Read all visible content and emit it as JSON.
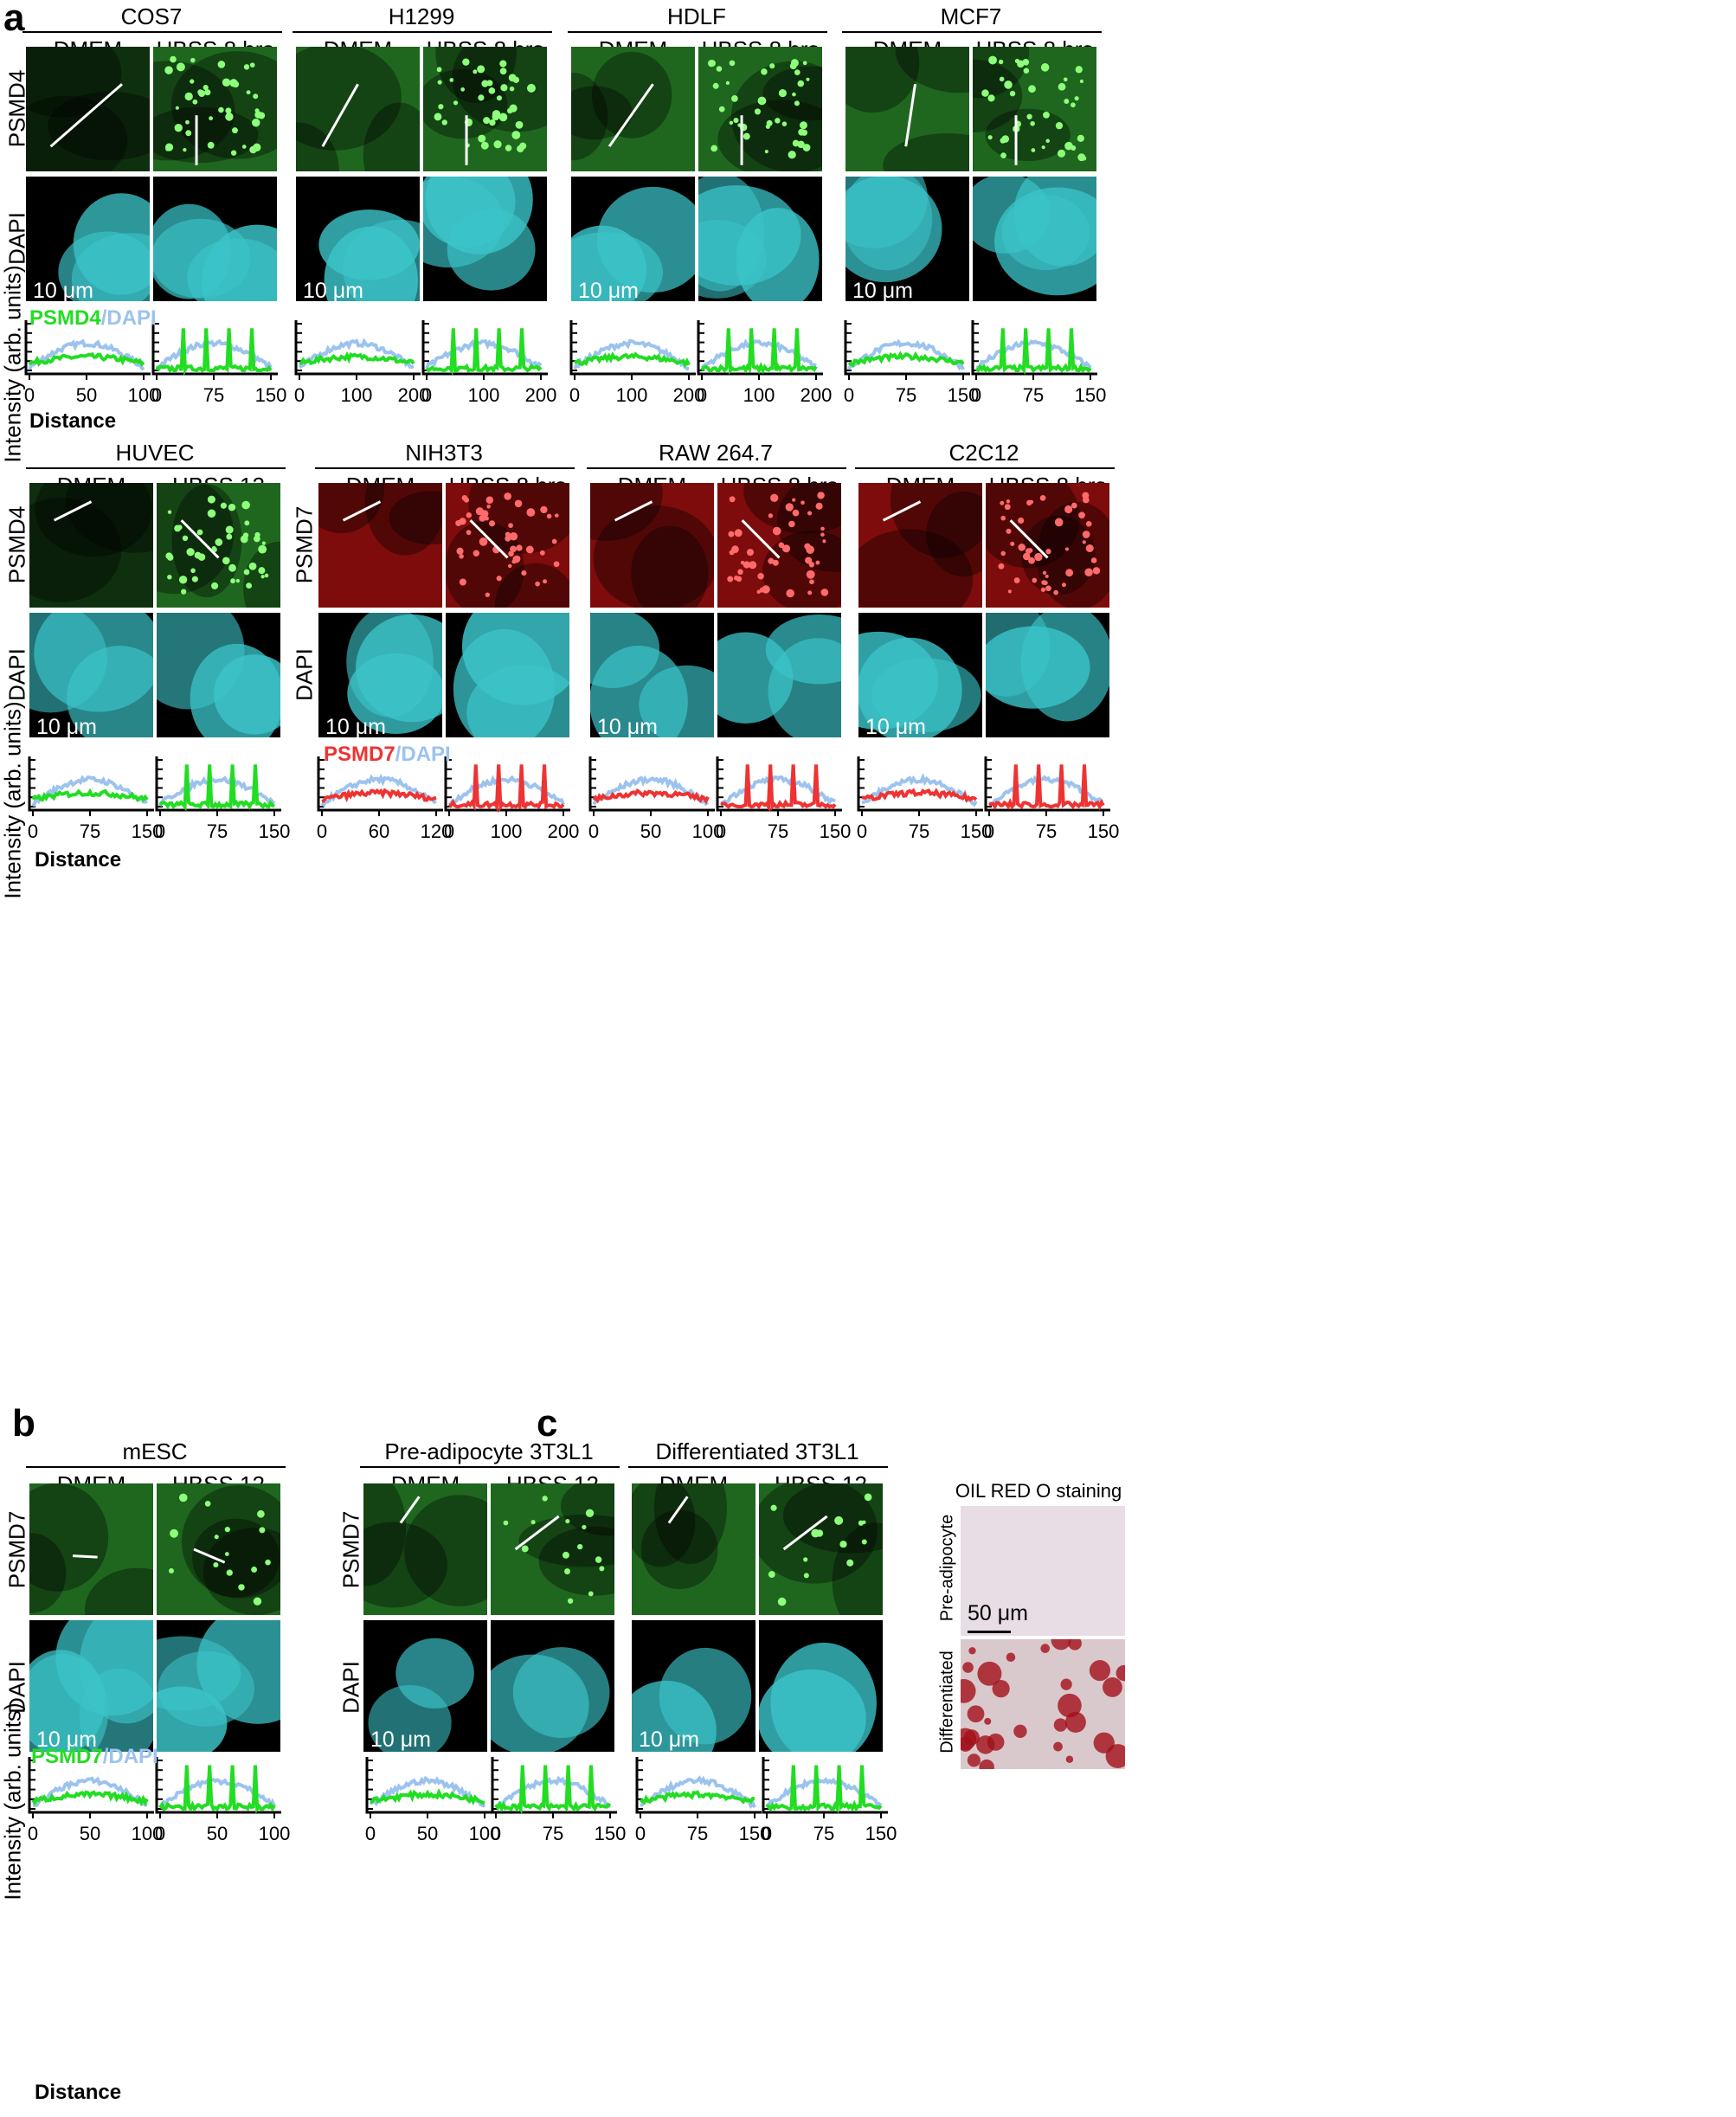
{
  "panel_labels": {
    "a": "a",
    "b": "b",
    "c": "c"
  },
  "conditions": {
    "dmem": "DMEM",
    "hbss8": "HBSS 8 hrs",
    "hbss12": "HBSS 12 hrs"
  },
  "markers": {
    "psmd4": "PSMD4",
    "psmd7": "PSMD7",
    "dapi": "DAPI"
  },
  "scale_10": "10 μm",
  "scale_50": "50 μm",
  "ylabel": "Intensity (arb. units)",
  "xlabel": "Distance",
  "legend_slash": "/",
  "colors": {
    "green": "#22dd22",
    "blue": "#9cc3ee",
    "red": "#ee3333",
    "cyan": "#3bc4c9",
    "fluor_green": "#2a8a2a",
    "fluor_red": "#a81010"
  },
  "row1": [
    {
      "title": "COS7",
      "ticks_dmem": [
        "0",
        "50",
        "100"
      ],
      "ticks_hbss": [
        "0",
        "75",
        "150"
      ]
    },
    {
      "title": "H1299",
      "ticks_dmem": [
        "0",
        "100",
        "200"
      ],
      "ticks_hbss": [
        "0",
        "100",
        "200"
      ]
    },
    {
      "title": "HDLF",
      "ticks_dmem": [
        "0",
        "100",
        "200"
      ],
      "ticks_hbss": [
        "0",
        "100",
        "200"
      ]
    },
    {
      "title": "MCF7",
      "ticks_dmem": [
        "0",
        "75",
        "150"
      ],
      "ticks_hbss": [
        "0",
        "75",
        "150"
      ]
    }
  ],
  "row2": [
    {
      "title": "HUVEC",
      "ticks_dmem": [
        "0",
        "75",
        "150"
      ],
      "ticks_hbss": [
        "0",
        "75",
        "150"
      ]
    },
    {
      "title": "NIH3T3",
      "ticks_dmem": [
        "0",
        "60",
        "120"
      ],
      "ticks_hbss": [
        "0",
        "100",
        "200"
      ]
    },
    {
      "title": "RAW 264.7",
      "ticks_dmem": [
        "0",
        "50",
        "100"
      ],
      "ticks_hbss": [
        "0",
        "75",
        "150"
      ]
    },
    {
      "title": "C2C12",
      "ticks_dmem": [
        "0",
        "75",
        "150"
      ],
      "ticks_hbss": [
        "0",
        "75",
        "150"
      ]
    }
  ],
  "row2_overlay_text": {
    "psmd": "PSMD",
    "da": "DA"
  },
  "panel_b": {
    "title": "mESC",
    "ticks_dmem": [
      "0",
      "50",
      "100"
    ],
    "ticks_hbss": [
      "0",
      "50",
      "100"
    ]
  },
  "panel_c": {
    "titles": [
      "Pre-adipocyte 3T3L1",
      "Differentiated 3T3L1"
    ],
    "ticks": [
      "0",
      "50",
      "100",
      "0",
      "75",
      "150",
      "0",
      "75",
      "150",
      "0",
      "75",
      "150"
    ],
    "oil_title": "OIL RED O staining",
    "oil_rows": [
      "Pre-adipocyte",
      "Differentiated"
    ]
  }
}
